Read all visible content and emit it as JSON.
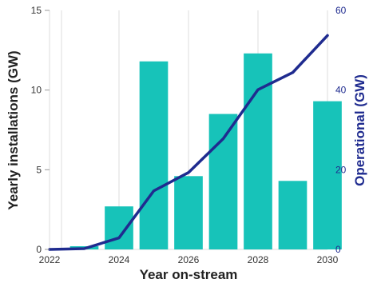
{
  "chart_data": {
    "type": "bar+line",
    "x": [
      2022,
      2023,
      2024,
      2025,
      2026,
      2027,
      2028,
      2029,
      2030
    ],
    "series": [
      {
        "type": "bar",
        "axis": "left",
        "color": "#17c3b9",
        "values": [
          0,
          0.2,
          2.7,
          11.8,
          4.6,
          8.5,
          12.3,
          4.3,
          9.3
        ]
      },
      {
        "type": "line",
        "axis": "right",
        "color": "#1f2b8f",
        "values": [
          0,
          0.2,
          2.9,
          14.7,
          19.3,
          27.8,
          40.1,
          44.4,
          53.7
        ]
      }
    ],
    "xlabel": "Year on-stream",
    "ylabel_left": "Yearly installations (GW)",
    "ylabel_right": "Operational (GW)",
    "ylim_left": [
      0,
      15
    ],
    "ylim_right": [
      0,
      60
    ],
    "xticks": [
      2022,
      2024,
      2026,
      2028,
      2030
    ],
    "yticks_left": [
      0,
      5,
      10,
      15
    ],
    "yticks_right": [
      0,
      20,
      40,
      60
    ],
    "grid": "vertical"
  }
}
